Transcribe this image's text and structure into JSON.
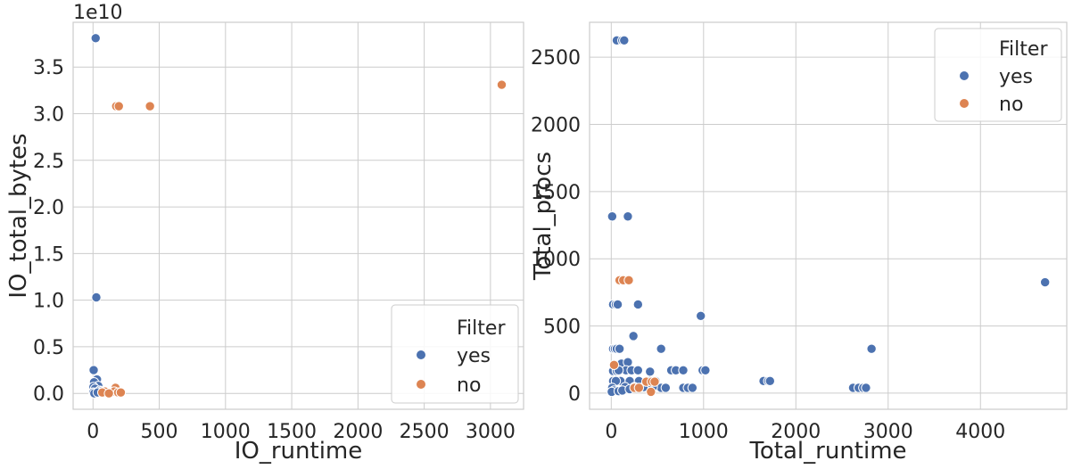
{
  "colors": {
    "yes": "#4c72b0",
    "no": "#dd8452",
    "grid": "#cccccc"
  },
  "chart_data": [
    {
      "type": "scatter",
      "xlabel": "IO_runtime",
      "ylabel": "IO_total_bytes",
      "y_offset_label": "1e10",
      "xlim": [
        -150,
        3250
      ],
      "ylim": [
        -0.17,
        3.98
      ],
      "xticks": [
        0,
        500,
        1000,
        1500,
        2000,
        2500,
        3000
      ],
      "xtick_labels": [
        "0",
        "500",
        "1000",
        "1500",
        "2000",
        "2500",
        "3000"
      ],
      "yticks": [
        0.0,
        0.5,
        1.0,
        1.5,
        2.0,
        2.5,
        3.0,
        3.5
      ],
      "ytick_labels": [
        "0.0",
        "0.5",
        "1.0",
        "1.5",
        "2.0",
        "2.5",
        "3.0",
        "3.5"
      ],
      "legend": {
        "title": "Filter",
        "position": "lower-right",
        "entries": [
          "yes",
          "no"
        ]
      },
      "series": [
        {
          "name": "yes",
          "points": [
            [
              20,
              3.81
            ],
            [
              25,
              1.03
            ],
            [
              5,
              0.25
            ],
            [
              30,
              0.15
            ],
            [
              8,
              0.12
            ],
            [
              40,
              0.08
            ],
            [
              3,
              0.07
            ],
            [
              15,
              0.05
            ],
            [
              50,
              0.03
            ],
            [
              60,
              0.02
            ],
            [
              2,
              0.01
            ],
            [
              10,
              0.0
            ],
            [
              35,
              0.01
            ]
          ]
        },
        {
          "name": "no",
          "points": [
            [
              175,
              3.08
            ],
            [
              195,
              3.08
            ],
            [
              430,
              3.08
            ],
            [
              3085,
              3.31
            ],
            [
              170,
              0.06
            ],
            [
              90,
              0.02
            ],
            [
              70,
              0.01
            ],
            [
              160,
              0.02
            ],
            [
              190,
              0.01
            ],
            [
              210,
              0.01
            ],
            [
              120,
              0.0
            ]
          ]
        }
      ]
    },
    {
      "type": "scatter",
      "xlabel": "Total_runtime",
      "ylabel": "Total_procs",
      "xlim": [
        -235,
        4935
      ],
      "ylim": [
        -120,
        2760
      ],
      "xticks": [
        0,
        1000,
        2000,
        3000,
        4000
      ],
      "xtick_labels": [
        "0",
        "1000",
        "2000",
        "3000",
        "4000"
      ],
      "yticks": [
        0,
        500,
        1000,
        1500,
        2000,
        2500
      ],
      "ytick_labels": [
        "0",
        "500",
        "1000",
        "1500",
        "2000",
        "2500"
      ],
      "legend": {
        "title": "Filter",
        "position": "upper-right",
        "entries": [
          "yes",
          "no"
        ]
      },
      "series": [
        {
          "name": "yes",
          "points": [
            [
              60,
              2625
            ],
            [
              120,
              2625
            ],
            [
              140,
              2625
            ],
            [
              10,
              1315
            ],
            [
              180,
              1315
            ],
            [
              970,
              575
            ],
            [
              4700,
              825
            ],
            [
              240,
              425
            ],
            [
              290,
              660
            ],
            [
              20,
              660
            ],
            [
              50,
              660
            ],
            [
              70,
              660
            ],
            [
              20,
              330
            ],
            [
              40,
              330
            ],
            [
              60,
              330
            ],
            [
              90,
              330
            ],
            [
              540,
              330
            ],
            [
              2820,
              330
            ],
            [
              130,
              210
            ],
            [
              110,
              220
            ],
            [
              180,
              230
            ],
            [
              650,
              170
            ],
            [
              700,
              170
            ],
            [
              780,
              170
            ],
            [
              990,
              170
            ],
            [
              1020,
              170
            ],
            [
              160,
              170
            ],
            [
              220,
              170
            ],
            [
              290,
              170
            ],
            [
              420,
              160
            ],
            [
              20,
              165
            ],
            [
              60,
              165
            ],
            [
              80,
              170
            ],
            [
              1650,
              90
            ],
            [
              1700,
              90
            ],
            [
              1720,
              90
            ],
            [
              100,
              90
            ],
            [
              200,
              90
            ],
            [
              300,
              90
            ],
            [
              420,
              90
            ],
            [
              480,
              90
            ],
            [
              20,
              90
            ],
            [
              50,
              90
            ],
            [
              540,
              40
            ],
            [
              590,
              40
            ],
            [
              780,
              40
            ],
            [
              830,
              40
            ],
            [
              880,
              40
            ],
            [
              2620,
              40
            ],
            [
              2680,
              40
            ],
            [
              2730,
              40
            ],
            [
              2760,
              40
            ],
            [
              150,
              45
            ],
            [
              250,
              45
            ],
            [
              350,
              45
            ],
            [
              450,
              45
            ],
            [
              10,
              40
            ],
            [
              30,
              20
            ],
            [
              5,
              10
            ],
            [
              80,
              15
            ],
            [
              120,
              20
            ],
            [
              200,
              30
            ]
          ]
        },
        {
          "name": "no",
          "points": [
            [
              90,
              840
            ],
            [
              130,
              840
            ],
            [
              190,
              840
            ],
            [
              30,
              210
            ],
            [
              380,
              85
            ],
            [
              440,
              85
            ],
            [
              470,
              85
            ],
            [
              430,
              10
            ],
            [
              250,
              40
            ],
            [
              300,
              40
            ]
          ]
        }
      ]
    }
  ]
}
